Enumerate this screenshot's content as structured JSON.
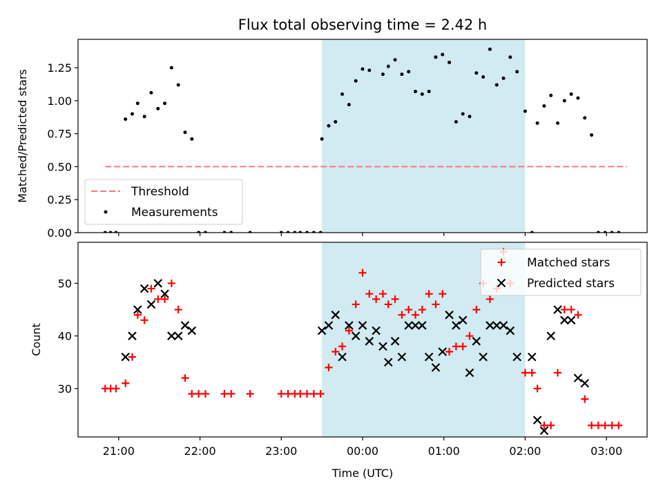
{
  "title": "Flux total observing time = 2.42 h",
  "chart_data": [
    {
      "type": "scatter",
      "ylabel": "Matched/Predicted stars",
      "ylim": [
        0,
        1.465
      ],
      "yticks": [
        "0.00",
        "0.25",
        "0.50",
        "0.75",
        "1.00",
        "1.25"
      ],
      "xlim": [
        "20:30",
        "03:30"
      ],
      "threshold": {
        "label": "Threshold",
        "value": 0.5,
        "x": [
          "20:50",
          "03:15"
        ],
        "color": "#ff7777"
      },
      "highlight": {
        "x": [
          "23:30",
          "02:00"
        ],
        "color": "#add8e6"
      },
      "legend": {
        "position": "lower-left",
        "entries": [
          "Threshold",
          "Measurements"
        ]
      },
      "series": [
        {
          "name": "Measurements",
          "color": "#000000",
          "points": [
            [
              "20:50",
              0
            ],
            [
              "20:54",
              0
            ],
            [
              "20:58",
              0
            ],
            [
              "21:05",
              0.86
            ],
            [
              "21:10",
              0.9
            ],
            [
              "21:14",
              0.98
            ],
            [
              "21:19",
              0.88
            ],
            [
              "21:24",
              1.06
            ],
            [
              "21:29",
              0.94
            ],
            [
              "21:34",
              0.98
            ],
            [
              "21:39",
              1.25
            ],
            [
              "21:44",
              1.12
            ],
            [
              "21:49",
              0.76
            ],
            [
              "21:54",
              0.71
            ],
            [
              "21:59",
              0
            ],
            [
              "22:04",
              0
            ],
            [
              "22:18",
              0
            ],
            [
              "22:23",
              0
            ],
            [
              "22:37",
              0
            ],
            [
              "23:00",
              0
            ],
            [
              "23:05",
              0
            ],
            [
              "23:10",
              0
            ],
            [
              "23:14",
              0
            ],
            [
              "23:19",
              0
            ],
            [
              "23:24",
              0
            ],
            [
              "23:29",
              0
            ],
            [
              "23:30",
              0.71
            ],
            [
              "23:35",
              0.81
            ],
            [
              "23:40",
              0.84
            ],
            [
              "23:45",
              1.05
            ],
            [
              "23:50",
              0.97
            ],
            [
              "23:55",
              1.15
            ],
            [
              "24:00",
              1.24
            ],
            [
              "24:05",
              1.23
            ],
            [
              "24:15",
              1.2
            ],
            [
              "24:19",
              1.26
            ],
            [
              "24:24",
              1.31
            ],
            [
              "24:29",
              1.2
            ],
            [
              "24:34",
              1.22
            ],
            [
              "24:39",
              1.07
            ],
            [
              "24:44",
              1.05
            ],
            [
              "24:49",
              1.07
            ],
            [
              "24:54",
              1.33
            ],
            [
              "24:59",
              1.35
            ],
            [
              "25:04",
              1.29
            ],
            [
              "25:09",
              0.84
            ],
            [
              "25:14",
              0.9
            ],
            [
              "25:19",
              0.88
            ],
            [
              "25:24",
              1.21
            ],
            [
              "25:29",
              1.18
            ],
            [
              "25:34",
              1.39
            ],
            [
              "25:39",
              1.12
            ],
            [
              "25:44",
              1.17
            ],
            [
              "25:49",
              1.33
            ],
            [
              "25:54",
              1.22
            ],
            [
              "26:00",
              0.92
            ],
            [
              "26:05",
              0
            ],
            [
              "26:09",
              0.83
            ],
            [
              "26:14",
              0.96
            ],
            [
              "26:19",
              1.04
            ],
            [
              "26:24",
              0.83
            ],
            [
              "26:29",
              1.0
            ],
            [
              "26:34",
              1.05
            ],
            [
              "26:39",
              1.02
            ],
            [
              "26:44",
              0.87
            ],
            [
              "26:49",
              0.74
            ],
            [
              "26:54",
              0
            ],
            [
              "26:59",
              0
            ],
            [
              "27:04",
              0
            ],
            [
              "27:09",
              0
            ]
          ]
        }
      ]
    },
    {
      "type": "scatter",
      "xlabel": "Time (UTC)",
      "ylabel": "Count",
      "ylim": [
        20.8,
        57.8
      ],
      "yticks": [
        "30",
        "40",
        "50"
      ],
      "xlim": [
        "20:30",
        "03:30"
      ],
      "xticks": [
        "21:00",
        "22:00",
        "23:00",
        "00:00",
        "01:00",
        "02:00",
        "03:00"
      ],
      "highlight": {
        "x": [
          "23:30",
          "02:00"
        ],
        "color": "#add8e6"
      },
      "legend": {
        "position": "upper-right",
        "entries": [
          "Matched stars",
          "Predicted stars"
        ]
      },
      "series": [
        {
          "name": "Matched stars",
          "marker": "plus",
          "color": "#ff0000",
          "points": [
            [
              "20:50",
              30
            ],
            [
              "20:54",
              30
            ],
            [
              "20:58",
              30
            ],
            [
              "21:05",
              31
            ],
            [
              "21:10",
              36
            ],
            [
              "21:14",
              44
            ],
            [
              "21:19",
              43
            ],
            [
              "21:24",
              49
            ],
            [
              "21:29",
              47
            ],
            [
              "21:34",
              47
            ],
            [
              "21:39",
              50
            ],
            [
              "21:44",
              45
            ],
            [
              "21:49",
              32
            ],
            [
              "21:54",
              29
            ],
            [
              "21:59",
              29
            ],
            [
              "22:04",
              29
            ],
            [
              "22:18",
              29
            ],
            [
              "22:23",
              29
            ],
            [
              "22:37",
              29
            ],
            [
              "23:00",
              29
            ],
            [
              "23:05",
              29
            ],
            [
              "23:10",
              29
            ],
            [
              "23:14",
              29
            ],
            [
              "23:19",
              29
            ],
            [
              "23:24",
              29
            ],
            [
              "23:29",
              29
            ],
            [
              "23:35",
              34
            ],
            [
              "23:40",
              37
            ],
            [
              "23:45",
              38
            ],
            [
              "23:50",
              41
            ],
            [
              "23:55",
              46
            ],
            [
              "24:00",
              52
            ],
            [
              "24:05",
              48
            ],
            [
              "24:10",
              47
            ],
            [
              "24:15",
              48
            ],
            [
              "24:19",
              46
            ],
            [
              "24:24",
              47
            ],
            [
              "24:29",
              44
            ],
            [
              "24:34",
              45
            ],
            [
              "24:39",
              44
            ],
            [
              "24:44",
              45
            ],
            [
              "24:49",
              48
            ],
            [
              "24:54",
              46
            ],
            [
              "24:59",
              48
            ],
            [
              "25:04",
              37
            ],
            [
              "25:09",
              38
            ],
            [
              "25:14",
              38
            ],
            [
              "25:19",
              40
            ],
            [
              "25:24",
              45
            ],
            [
              "25:29",
              50
            ],
            [
              "25:34",
              47
            ],
            [
              "25:39",
              49
            ],
            [
              "25:44",
              56
            ],
            [
              "25:49",
              50
            ],
            [
              "26:00",
              33
            ],
            [
              "26:05",
              33
            ],
            [
              "26:09",
              30
            ],
            [
              "26:14",
              23
            ],
            [
              "26:19",
              23
            ],
            [
              "26:24",
              33
            ],
            [
              "26:29",
              45
            ],
            [
              "26:34",
              45
            ],
            [
              "26:39",
              44
            ],
            [
              "26:44",
              28
            ],
            [
              "26:49",
              23
            ],
            [
              "26:54",
              23
            ],
            [
              "26:59",
              23
            ],
            [
              "27:04",
              23
            ],
            [
              "27:09",
              23
            ]
          ]
        },
        {
          "name": "Predicted stars",
          "marker": "x",
          "color": "#000000",
          "points": [
            [
              "21:05",
              36
            ],
            [
              "21:10",
              40
            ],
            [
              "21:14",
              45
            ],
            [
              "21:19",
              49
            ],
            [
              "21:24",
              46
            ],
            [
              "21:29",
              50
            ],
            [
              "21:34",
              48
            ],
            [
              "21:39",
              40
            ],
            [
              "21:44",
              40
            ],
            [
              "21:49",
              42
            ],
            [
              "21:54",
              41
            ],
            [
              "23:30",
              41
            ],
            [
              "23:35",
              42
            ],
            [
              "23:40",
              44
            ],
            [
              "23:45",
              36
            ],
            [
              "23:50",
              42
            ],
            [
              "23:55",
              40
            ],
            [
              "24:00",
              42
            ],
            [
              "24:05",
              39
            ],
            [
              "24:10",
              41
            ],
            [
              "24:15",
              38
            ],
            [
              "24:19",
              35
            ],
            [
              "24:24",
              39
            ],
            [
              "24:29",
              36
            ],
            [
              "24:34",
              42
            ],
            [
              "24:39",
              42
            ],
            [
              "24:44",
              42
            ],
            [
              "24:49",
              36
            ],
            [
              "24:54",
              34
            ],
            [
              "24:59",
              37
            ],
            [
              "25:04",
              44
            ],
            [
              "25:09",
              42
            ],
            [
              "25:14",
              43
            ],
            [
              "25:19",
              33
            ],
            [
              "25:24",
              39
            ],
            [
              "25:29",
              36
            ],
            [
              "25:34",
              42
            ],
            [
              "25:39",
              42
            ],
            [
              "25:44",
              42
            ],
            [
              "25:49",
              41
            ],
            [
              "25:54",
              36
            ],
            [
              "26:05",
              36
            ],
            [
              "26:09",
              24
            ],
            [
              "26:14",
              22
            ],
            [
              "26:19",
              40
            ],
            [
              "26:24",
              45
            ],
            [
              "26:29",
              43
            ],
            [
              "26:34",
              43
            ],
            [
              "26:39",
              32
            ],
            [
              "26:44",
              31
            ]
          ]
        }
      ]
    }
  ]
}
